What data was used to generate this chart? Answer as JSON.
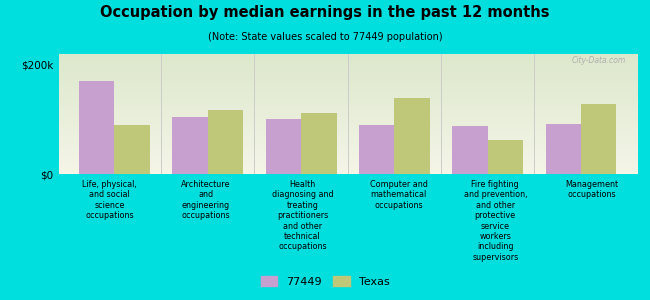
{
  "title": "Occupation by median earnings in the past 12 months",
  "subtitle": "(Note: State values scaled to 77449 population)",
  "background_color": "#00dede",
  "plot_bg_color_top": "#dce8cc",
  "plot_bg_color_bottom": "#f5f5e8",
  "categories": [
    "Life, physical,\nand social\nscience\noccupations",
    "Architecture\nand\nengineering\noccupations",
    "Health\ndiagnosing and\ntreating\npractitioners\nand other\ntechnical\noccupations",
    "Computer and\nmathematical\noccupations",
    "Fire fighting\nand prevention,\nand other\nprotective\nservice\nworkers\nincluding\nsupervisors",
    "Management\noccupations"
  ],
  "values_77449": [
    170000,
    105000,
    100000,
    90000,
    88000,
    92000
  ],
  "values_texas": [
    90000,
    118000,
    112000,
    140000,
    62000,
    128000
  ],
  "color_77449": "#c8a0d0",
  "color_texas": "#bec878",
  "ylim": [
    0,
    220000
  ],
  "yticks": [
    0,
    200000
  ],
  "ytick_labels": [
    "$0",
    "$200k"
  ],
  "legend_labels": [
    "77449",
    "Texas"
  ],
  "bar_width": 0.38,
  "watermark": "City-Data.com"
}
